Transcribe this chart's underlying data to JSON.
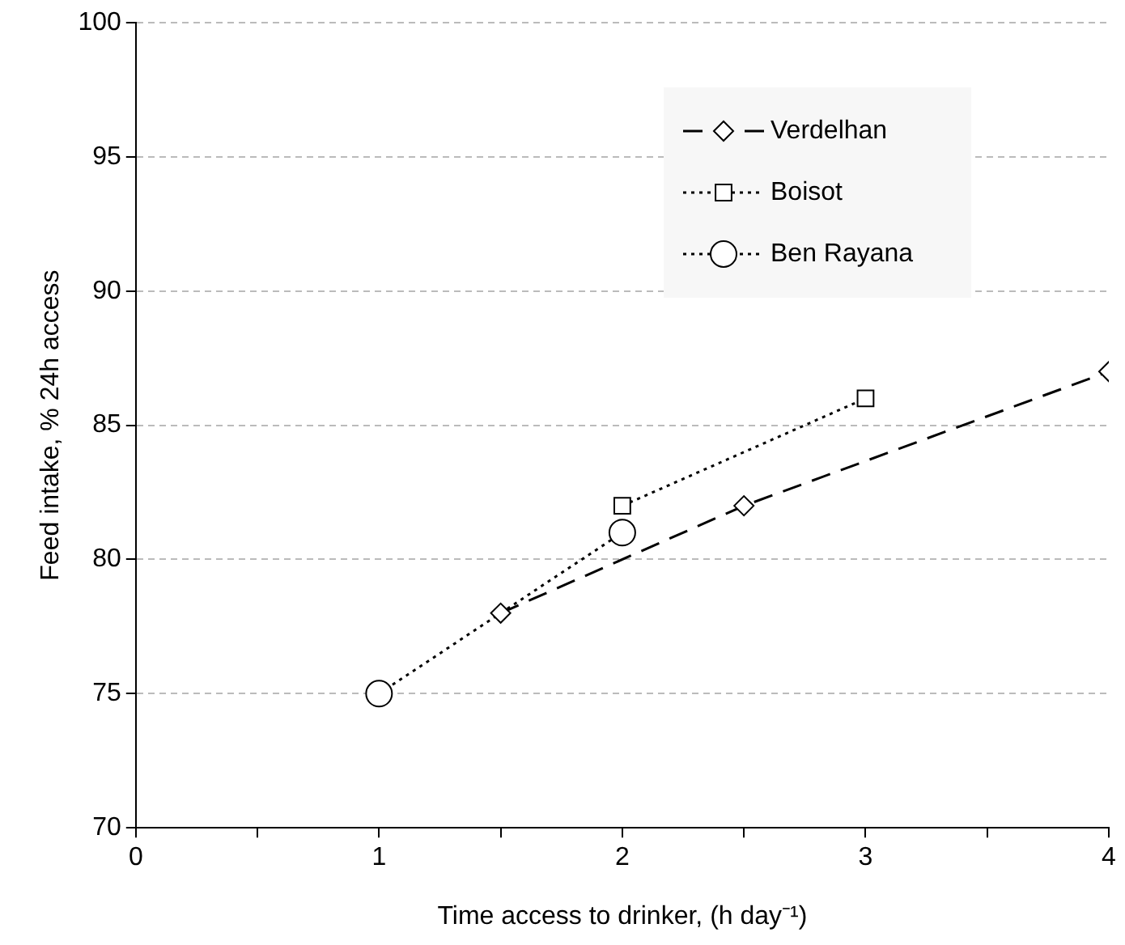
{
  "chart_data": {
    "type": "line",
    "xlabel": "Time access to drinker, (h day⁻¹)",
    "ylabel": "Feed intake, % 24h access",
    "xlim": [
      0,
      4
    ],
    "xticks": [
      0,
      {
        "value": 0.5,
        "label": null
      },
      1,
      {
        "value": 1.5,
        "label": null
      },
      2,
      {
        "value": 2.5,
        "label": null
      },
      3,
      {
        "value": 3.5,
        "label": null
      },
      4
    ],
    "ylim": [
      70,
      100
    ],
    "yticks": [
      70,
      75,
      80,
      85,
      90,
      95,
      100
    ],
    "grid": "y",
    "legend": "top right",
    "series": [
      {
        "name": "Verdelhan",
        "color": "#000000",
        "x": [
          1.5,
          2.5,
          4
        ],
        "values": [
          78,
          82,
          87
        ],
        "marker": "diamond",
        "line_style": "dashed"
      },
      {
        "name": "Boisot",
        "color": "#000000",
        "x": [
          2,
          3
        ],
        "values": [
          82,
          86
        ],
        "marker": "square",
        "line_style": "dotted"
      },
      {
        "name": "Ben Rayana",
        "color": "#000000",
        "x": [
          1,
          2
        ],
        "values": [
          75,
          81
        ],
        "marker": "circle",
        "line_style": "dotted"
      }
    ]
  }
}
